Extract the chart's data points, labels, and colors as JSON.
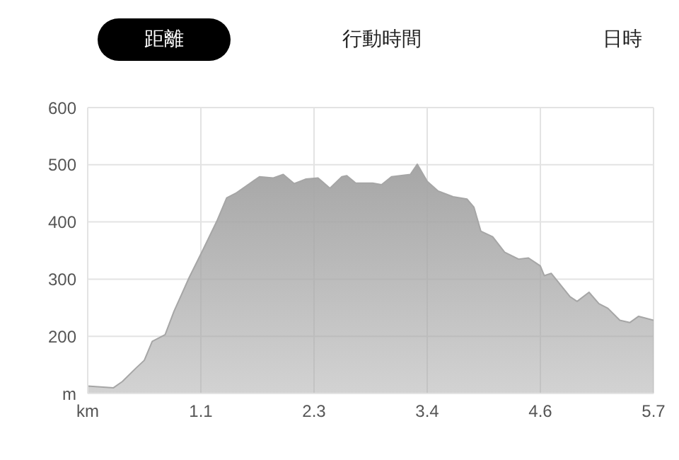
{
  "chart_data": {
    "type": "area",
    "annotations": [
      "距離",
      "行動時間",
      "日時"
    ],
    "x": [
      0,
      0.26,
      0.35,
      0.49,
      0.57,
      0.65,
      0.78,
      0.87,
      1.02,
      1.16,
      1.3,
      1.4,
      1.49,
      1.63,
      1.73,
      1.87,
      1.97,
      2.08,
      2.2,
      2.32,
      2.44,
      2.56,
      2.61,
      2.7,
      2.87,
      2.96,
      3.06,
      3.25,
      3.32,
      3.42,
      3.53,
      3.68,
      3.82,
      3.89,
      3.96,
      4.08,
      4.2,
      4.34,
      4.44,
      4.56,
      4.6,
      4.67,
      4.86,
      4.93,
      5.05,
      5.15,
      5.24,
      5.36,
      5.46,
      5.55,
      5.7
    ],
    "values": [
      113,
      110,
      121,
      145,
      158,
      191,
      203,
      244,
      302,
      351,
      401,
      442,
      450,
      467,
      479,
      477,
      483,
      467,
      475,
      477,
      459,
      479,
      481,
      468,
      468,
      465,
      479,
      483,
      501,
      471,
      454,
      444,
      440,
      426,
      384,
      374,
      347,
      335,
      337,
      323,
      306,
      310,
      269,
      261,
      277,
      257,
      249,
      228,
      224,
      235,
      228
    ],
    "color": "#a6a6a6",
    "xlim": [
      0,
      5.7
    ],
    "xticks": [
      {
        "value": 0,
        "label": "km"
      },
      {
        "value": 1.14,
        "label": "1.1"
      },
      {
        "value": 2.28,
        "label": "2.3"
      },
      {
        "value": 3.42,
        "label": "3.4"
      },
      {
        "value": 4.56,
        "label": "4.6"
      },
      {
        "value": 5.7,
        "label": "5.7"
      }
    ],
    "ylim": [
      100,
      600
    ],
    "yticks": [
      {
        "value": 100,
        "label": "m"
      },
      200,
      300,
      400,
      500,
      600
    ],
    "grid": true,
    "marker": "none"
  }
}
